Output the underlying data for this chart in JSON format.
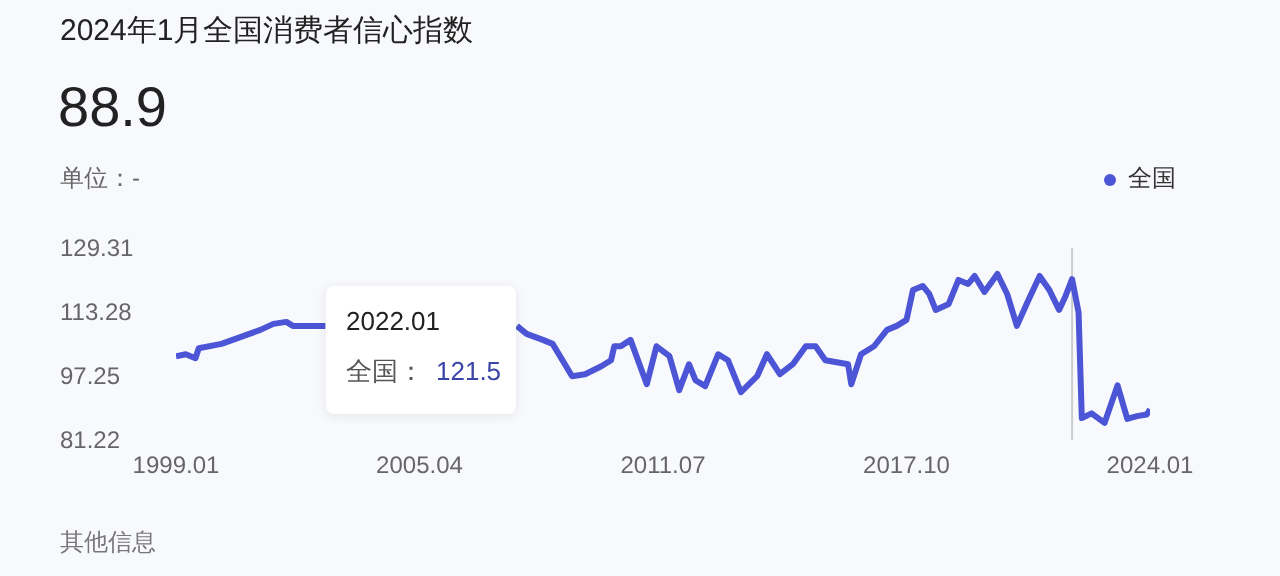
{
  "chart_data": {
    "type": "line",
    "title": "2024年1月全国消费者信心指数",
    "annotations": [
      "88.9",
      "单位：-",
      "其他信息",
      "2022.01",
      "全国：",
      "121.5"
    ],
    "x": [
      "1999-01",
      "1999-04",
      "1999-07",
      "1999-08",
      "2000-03",
      "2001-03",
      "2001-07",
      "2001-11",
      "2002-01",
      "2002-11",
      "2005-01",
      "2007-10",
      "2008-01",
      "2008-06",
      "2008-09",
      "2009-03",
      "2009-07",
      "2009-12",
      "2010-03",
      "2010-04",
      "2010-06",
      "2010-09",
      "2011-02",
      "2011-05",
      "2011-09",
      "2011-12",
      "2012-03",
      "2012-05",
      "2012-08",
      "2012-12",
      "2013-03",
      "2013-07",
      "2013-12",
      "2014-03",
      "2014-07",
      "2014-11",
      "2015-03",
      "2015-06",
      "2015-09",
      "2016-04",
      "2016-05",
      "2016-08",
      "2016-12",
      "2017-04",
      "2017-07",
      "2017-10",
      "2017-12",
      "2018-03",
      "2018-05",
      "2018-07",
      "2018-11",
      "2019-02",
      "2019-05",
      "2019-07",
      "2019-10",
      "2020-02",
      "2020-05",
      "2020-08",
      "2020-11",
      "2021-03",
      "2021-06",
      "2021-09",
      "2021-11",
      "2022-01",
      "2022-03",
      "2022-04",
      "2022-07",
      "2022-11",
      "2023-03",
      "2023-06",
      "2023-09",
      "2023-12",
      "2024-01"
    ],
    "series": [
      {
        "name": "全国",
        "color": "#4b55d6",
        "values": [
          102.2,
          102.7,
          101.7,
          104.2,
          105.3,
          108.8,
          110.3,
          110.8,
          109.8,
          109.8,
          null,
          109.8,
          107.8,
          106.3,
          105.3,
          97.2,
          97.7,
          99.7,
          101.2,
          104.7,
          104.7,
          106.3,
          95.2,
          104.7,
          102.2,
          93.7,
          100.2,
          96.2,
          94.7,
          102.7,
          101.2,
          93.2,
          97.2,
          102.7,
          97.7,
          100.2,
          104.7,
          104.7,
          101.2,
          100.2,
          95.2,
          102.7,
          104.7,
          108.8,
          109.8,
          111.3,
          118.8,
          119.8,
          117.8,
          113.8,
          115.3,
          121.3,
          120.3,
          122.3,
          118.3,
          122.8,
          117.8,
          109.8,
          115.3,
          122.3,
          118.8,
          113.8,
          117.3,
          121.5,
          113.2,
          86.7,
          87.9,
          85.5,
          94.9,
          86.5,
          87.2,
          87.6,
          88.9
        ]
      }
    ],
    "xlim": [
      "1999-01",
      "2024-01"
    ],
    "xticks": [
      {
        "value": "1999-01",
        "label": "1999.01"
      },
      {
        "value": "2005-04",
        "label": "2005.04"
      },
      {
        "value": "2011-07",
        "label": "2011.07"
      },
      {
        "value": "2017-10",
        "label": "2017.10"
      },
      {
        "value": "2024-01",
        "label": "2024.01"
      }
    ],
    "ylim": [
      81.22,
      129.31
    ],
    "yticks": [
      81.22,
      97.25,
      113.28,
      129.31
    ],
    "ref_lines": [
      {
        "axis": "x",
        "value": "2022-01",
        "color": "#cccccc"
      }
    ],
    "legend": "top right"
  }
}
